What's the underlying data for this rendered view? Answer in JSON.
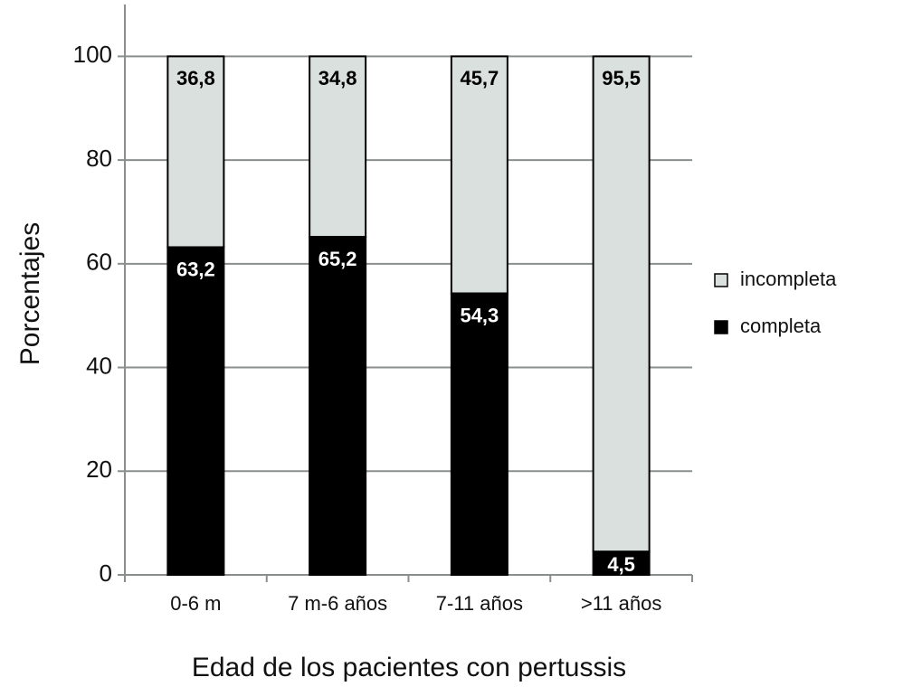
{
  "chart_data": {
    "type": "stacked_bar",
    "x_label": "Edad de los pacientes con pertussis",
    "y_label": "Porcentajes",
    "categories": [
      "0-6 m",
      "7 m-6 años",
      "7-11 años",
      ">11 años"
    ],
    "series": [
      {
        "name": "completa",
        "color": "#000000",
        "label_color": "#ffffff",
        "values": [
          63.2,
          65.2,
          54.3,
          4.5
        ],
        "value_labels": [
          "63,2",
          "65,2",
          "54,3",
          "4,5"
        ]
      },
      {
        "name": "incompleta",
        "color": "#d9e0dd",
        "label_color": "#000000",
        "values": [
          36.8,
          34.8,
          45.7,
          95.5
        ],
        "value_labels": [
          "36,8",
          "34,8",
          "45,7",
          "95,5"
        ]
      }
    ],
    "ylim": [
      0,
      110
    ],
    "yticks": [
      0,
      20,
      40,
      60,
      80,
      100
    ],
    "grid": true,
    "legend": "right"
  }
}
